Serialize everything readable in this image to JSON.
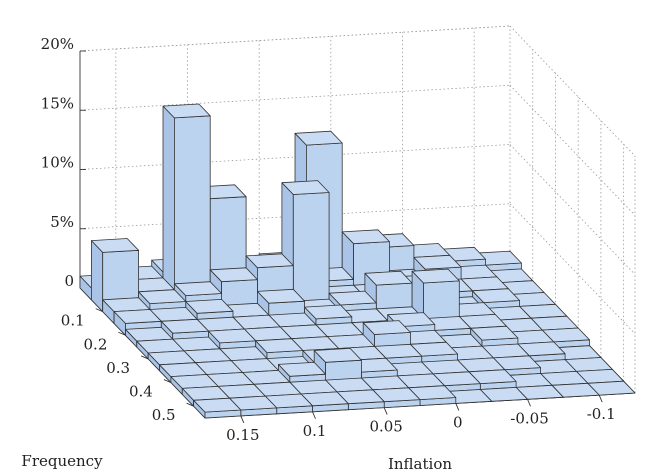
{
  "chart_data": {
    "type": "bar3d",
    "x_label": "Inflation",
    "y_label": "Frequency",
    "x_bins": [
      0.175,
      0.15,
      0.125,
      0.1,
      0.075,
      0.05,
      0.025,
      0,
      -0.025,
      -0.05,
      -0.075,
      -0.1,
      -0.125
    ],
    "y_bins": [
      0,
      0.05,
      0.1,
      0.15,
      0.2,
      0.25,
      0.3,
      0.35,
      0.4,
      0.45,
      0.5,
      0.55
    ],
    "values": [
      [
        1,
        1.5,
        2,
        1,
        1.5,
        2,
        12,
        1,
        3,
        2,
        1.5,
        1
      ],
      [
        5,
        1.5,
        16,
        9,
        2,
        1,
        1.5,
        4.5,
        1,
        2,
        1,
        0.5
      ],
      [
        1,
        1.5,
        2,
        3,
        4,
        10,
        1,
        1,
        1.5,
        1,
        1,
        0.5
      ],
      [
        1,
        1,
        1.5,
        1,
        2,
        1,
        1.5,
        3,
        1,
        0.5,
        1,
        0.5
      ],
      [
        0.5,
        1,
        1,
        1,
        1,
        1.5,
        1,
        1,
        4,
        1,
        0.5,
        0.5
      ],
      [
        0.5,
        0.5,
        1,
        1,
        1,
        1,
        1,
        1.5,
        1,
        1,
        0.5,
        0.5
      ],
      [
        0.5,
        0.5,
        0.5,
        1,
        1,
        1,
        2,
        1,
        0.5,
        1,
        0.5,
        0.5
      ],
      [
        0.5,
        0.5,
        0.5,
        0.5,
        1,
        1,
        1,
        1,
        0.5,
        0.5,
        0.5,
        0
      ],
      [
        0.5,
        0.5,
        0.5,
        1,
        2,
        1,
        0.5,
        0.5,
        0.5,
        0.5,
        0,
        0
      ],
      [
        0.5,
        0.5,
        0.5,
        0.5,
        0.5,
        0.5,
        0.5,
        0.5,
        0.5,
        0,
        0,
        0
      ],
      [
        0.5,
        0.5,
        0.5,
        0.5,
        0.5,
        0.5,
        0.5,
        0,
        0,
        0,
        0,
        0
      ]
    ],
    "color": "#c9dcf4",
    "xlim": [
      0.175,
      -0.125
    ],
    "ylim": [
      0,
      0.55
    ],
    "zlim": [
      0,
      20
    ],
    "xticks": [
      0.15,
      0.1,
      0.05,
      0,
      -0.05,
      -0.1
    ],
    "yticks": [
      0.1,
      0.2,
      0.3,
      0.4,
      0.5
    ],
    "zticks": [
      0,
      {
        "value": 5,
        "label": "5%"
      },
      {
        "value": 10,
        "label": "10%"
      },
      {
        "value": 15,
        "label": "15%"
      },
      {
        "value": 20,
        "label": "20%"
      }
    ],
    "grid": true
  }
}
